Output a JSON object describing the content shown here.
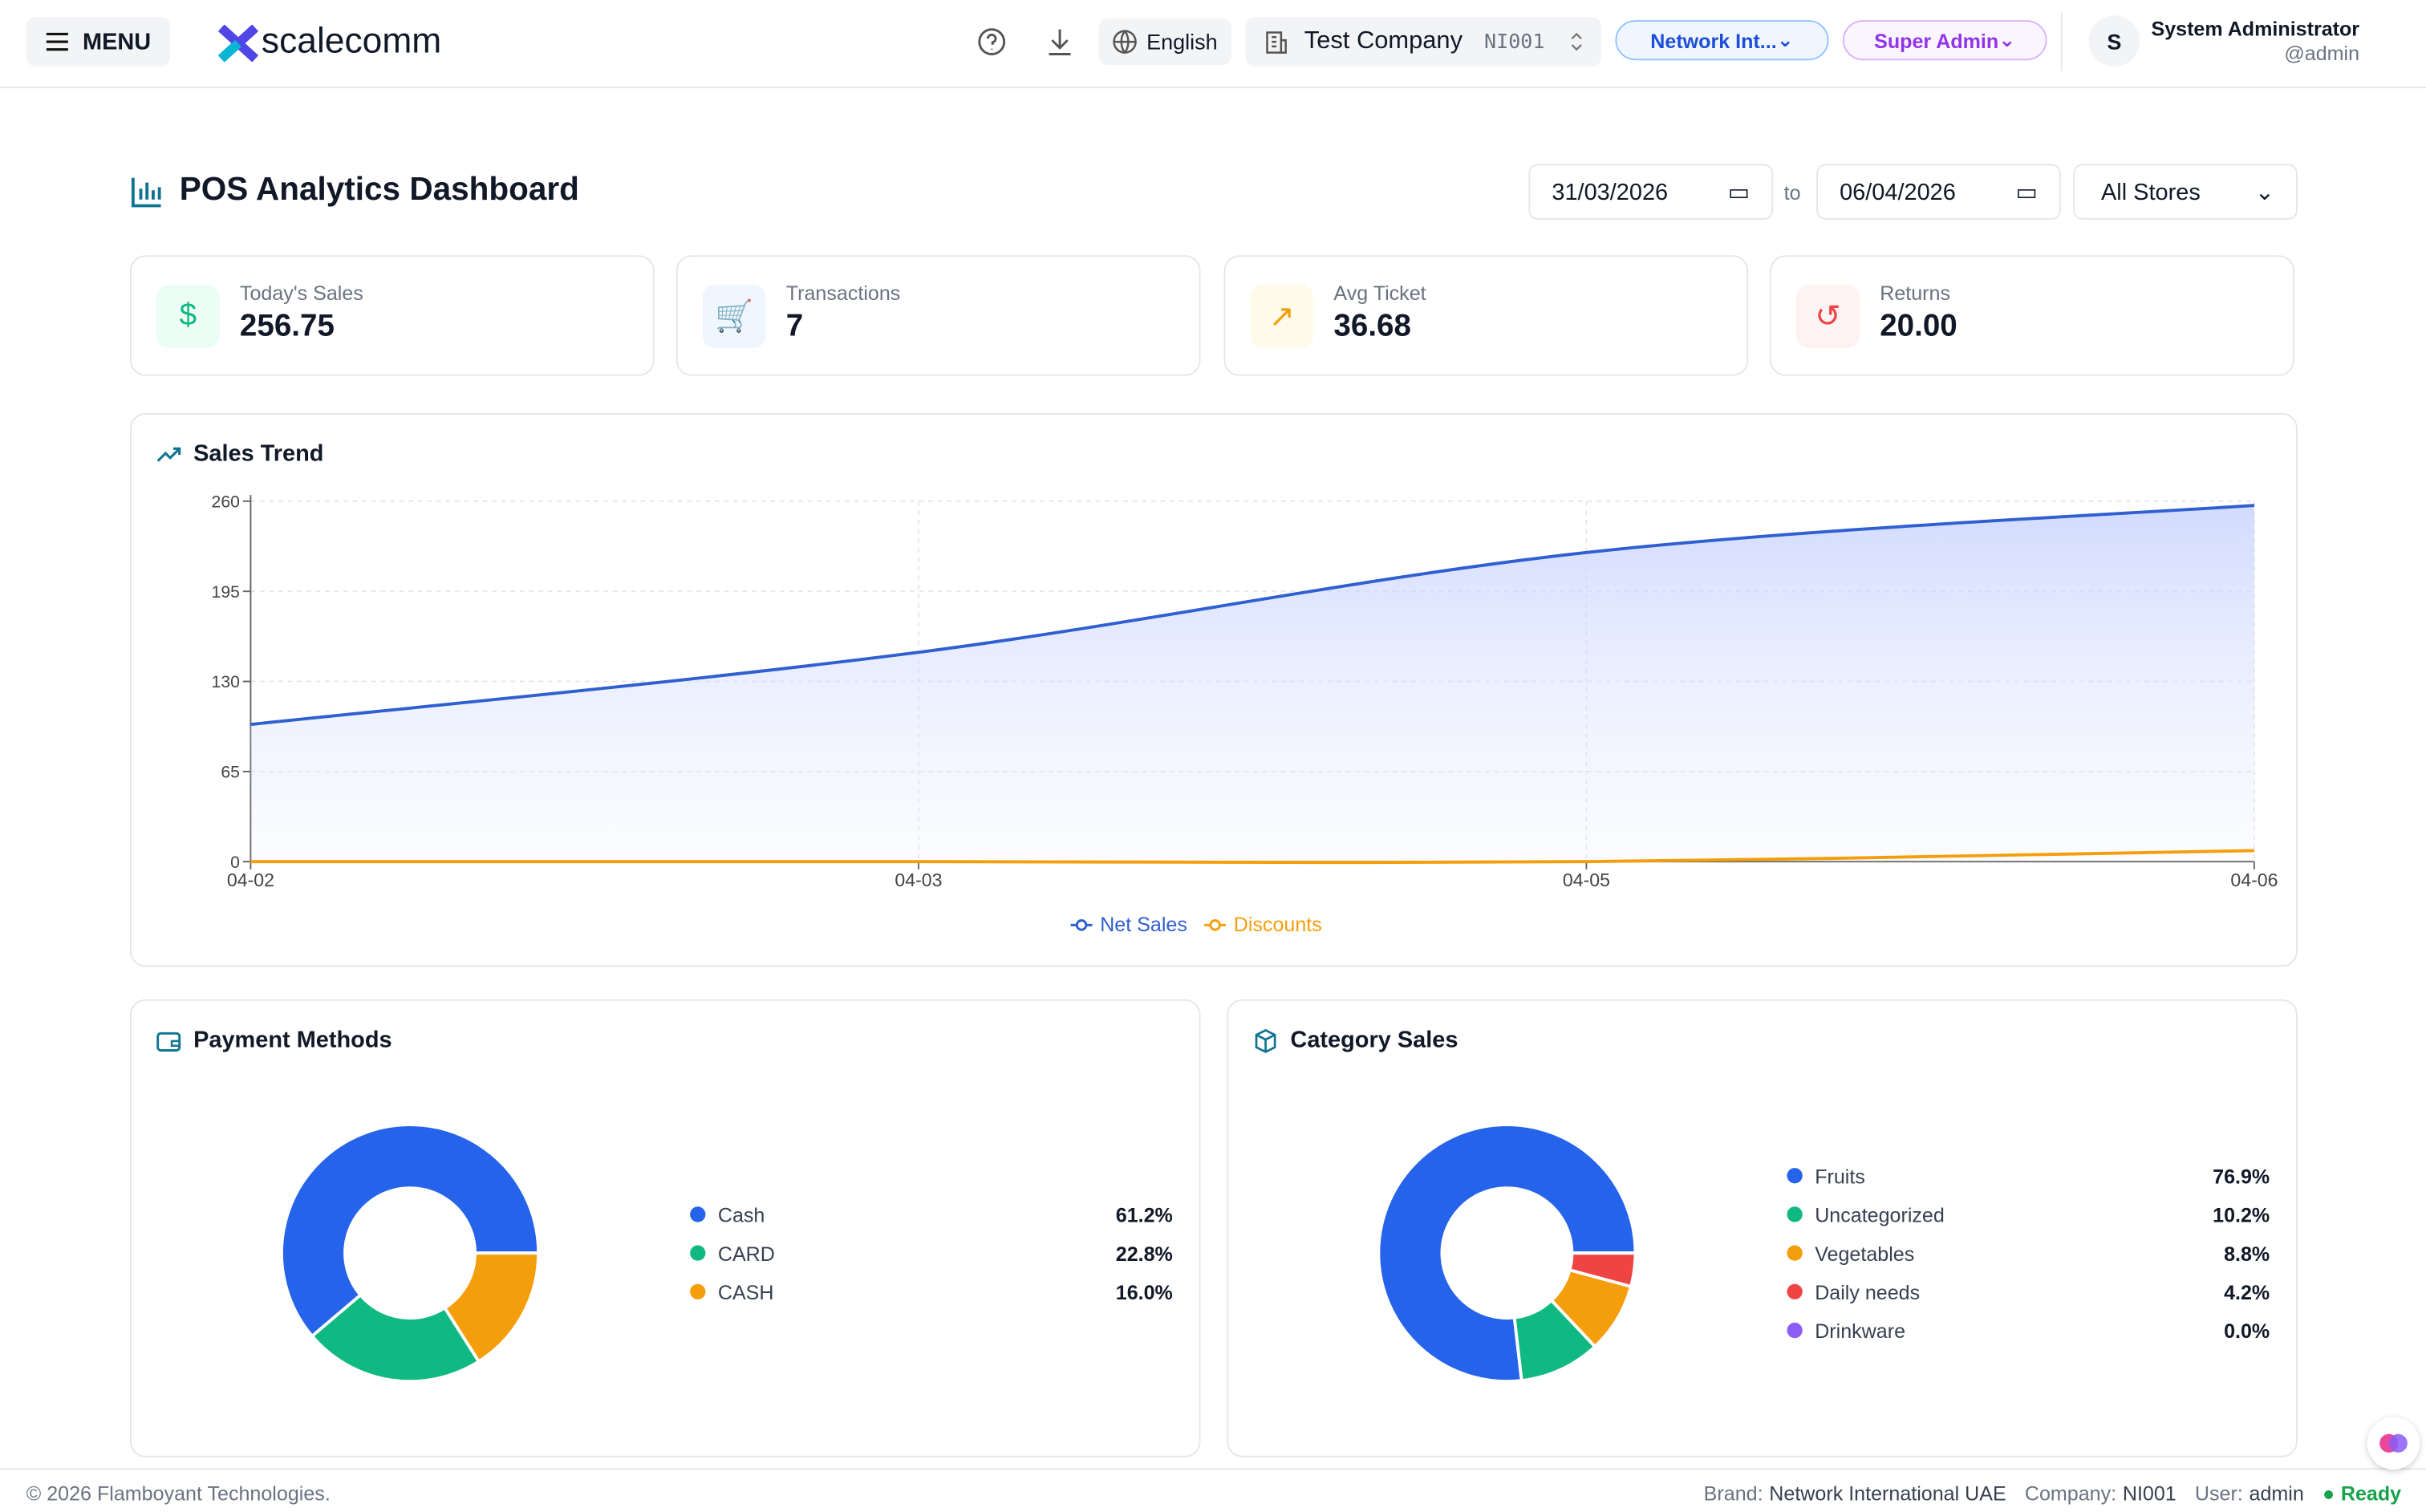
{
  "header": {
    "menu": "MENU",
    "logo": "scalecomm",
    "language": "English",
    "company": "Test Company",
    "company_code": "NI001",
    "brand": "Network Int...",
    "role": "Super Admin",
    "avatar": "S",
    "user_name": "System Administrator",
    "user_handle": "@admin"
  },
  "dashboard": {
    "title": "POS Analytics Dashboard",
    "date_from": "31/03/2026",
    "date_sep": "to",
    "date_to": "06/04/2026",
    "store": "All Stores"
  },
  "kpis": [
    {
      "label": "Today's Sales",
      "value": "256.75"
    },
    {
      "label": "Transactions",
      "value": "7"
    },
    {
      "label": "Avg Ticket",
      "value": "36.68"
    },
    {
      "label": "Returns",
      "value": "20.00"
    }
  ],
  "chart_data": [
    {
      "type": "line",
      "title": "Sales Trend",
      "categories": [
        "04-02",
        "04-03",
        "04-05",
        "04-06"
      ],
      "series": [
        {
          "name": "Net Sales",
          "color": "#2f5fd0",
          "values": [
            99,
            151,
            223,
            257
          ]
        },
        {
          "name": "Discounts",
          "color": "#f59e0b",
          "values": [
            0,
            0,
            0,
            8
          ]
        }
      ],
      "ylim": [
        0,
        260
      ],
      "yticks": [
        0,
        65,
        130,
        195,
        260
      ],
      "grid": true,
      "area": true
    },
    {
      "type": "pie",
      "title": "Payment Methods",
      "categories": [
        "Cash",
        "CARD",
        "CASH"
      ],
      "values": [
        61.2,
        22.8,
        16.0
      ],
      "value_labels": [
        "61.2%",
        "22.8%",
        "16.0%"
      ],
      "colors": [
        "#2563eb",
        "#10b981",
        "#f59e0b"
      ],
      "donut": true
    },
    {
      "type": "pie",
      "title": "Category Sales",
      "categories": [
        "Fruits",
        "Uncategorized",
        "Vegetables",
        "Daily needs",
        "Drinkware"
      ],
      "values": [
        76.9,
        10.2,
        8.8,
        4.2,
        0.0
      ],
      "value_labels": [
        "76.9%",
        "10.2%",
        "8.8%",
        "4.2%",
        "0.0%"
      ],
      "colors": [
        "#2563eb",
        "#10b981",
        "#f59e0b",
        "#ef4444",
        "#8b5cf6"
      ],
      "donut": true
    }
  ],
  "footer": {
    "copyright": "© 2026 Flamboyant Technologies.",
    "brand_label": "Brand:",
    "brand": "Network International UAE",
    "company_label": "Company:",
    "company": "NI001",
    "user_label": "User:",
    "user": "admin",
    "status": "Ready"
  }
}
